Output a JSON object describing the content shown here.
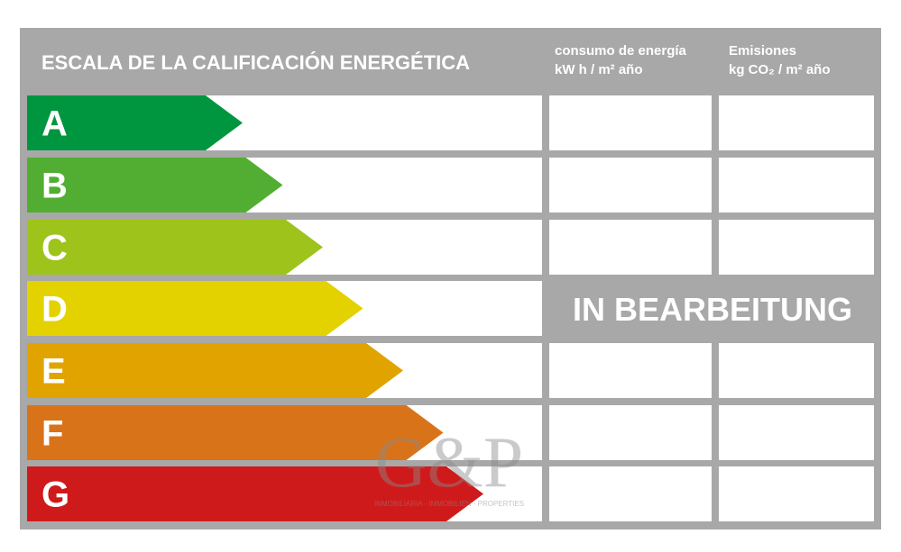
{
  "header": {
    "title": "ESCALA DE LA CALIFICACIÓN ENERGÉTICA",
    "columns": [
      {
        "line1": "consumo de energía",
        "line2": "kW h / m² año"
      },
      {
        "line1": "Emisiones",
        "line2": "kg CO₂ / m² año"
      }
    ]
  },
  "ratings": [
    "A",
    "B",
    "C",
    "D",
    "E",
    "F",
    "G"
  ],
  "status": "IN BEARBEITUNG",
  "watermark": {
    "logo": "G&P",
    "tagline": "INMOBILIARIA - IMMOBILIEN - PROPERTIES"
  }
}
